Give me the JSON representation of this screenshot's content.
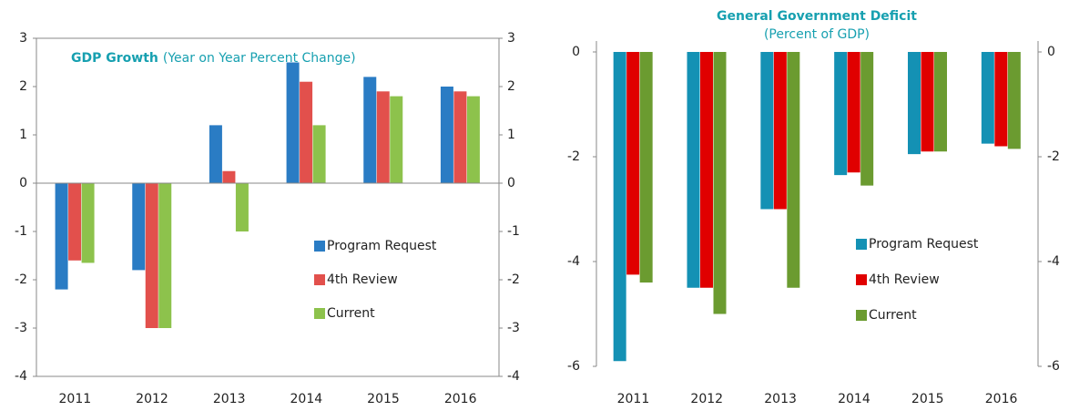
{
  "chart_data": [
    {
      "type": "bar",
      "title": "GDP Growth",
      "subtitle": "(Year on Year Percent Change)",
      "categories": [
        "2011",
        "2012",
        "2013",
        "2014",
        "2015",
        "2016"
      ],
      "series": [
        {
          "name": "Program Request",
          "color": "#2a7cc4",
          "values": [
            -2.2,
            -1.8,
            1.2,
            2.5,
            2.2,
            2.0
          ]
        },
        {
          "name": "4th Review",
          "color": "#e2504c",
          "values": [
            -1.6,
            -3.0,
            0.25,
            2.1,
            1.9,
            1.9
          ]
        },
        {
          "name": "Current",
          "color": "#8dc24c",
          "values": [
            -1.65,
            -3.0,
            -1.0,
            1.2,
            1.8,
            1.8
          ]
        }
      ],
      "ylim": [
        -4,
        3
      ],
      "yticks": [
        -4,
        -3,
        -2,
        -1,
        0,
        1,
        2,
        3
      ],
      "y2lim": [
        -4,
        3
      ],
      "y2ticks": [
        -4,
        -3,
        -2,
        -1,
        0,
        1,
        2,
        3
      ],
      "grid": false,
      "legend": "lower right"
    },
    {
      "type": "bar",
      "title": "General Government Deficit",
      "subtitle": "(Percent of GDP)",
      "categories": [
        "2011",
        "2012",
        "2013",
        "2014",
        "2015",
        "2016"
      ],
      "series": [
        {
          "name": "Program Request",
          "color": "#1491b4",
          "values": [
            -5.9,
            -4.5,
            -3.0,
            -2.35,
            -1.95,
            -1.75
          ]
        },
        {
          "name": "4th Review",
          "color": "#e00000",
          "values": [
            -4.25,
            -4.5,
            -3.0,
            -2.3,
            -1.9,
            -1.8
          ]
        },
        {
          "name": "Current",
          "color": "#6b9b30",
          "values": [
            -4.4,
            -5.0,
            -4.5,
            -2.55,
            -1.9,
            -1.85
          ]
        }
      ],
      "ylim": [
        -6,
        0
      ],
      "yticks": [
        -6,
        -4,
        -2,
        0
      ],
      "y2lim": [
        -6,
        0
      ],
      "y2ticks": [
        -6,
        -4,
        -2,
        0
      ],
      "grid": false,
      "legend": "lower right"
    }
  ]
}
